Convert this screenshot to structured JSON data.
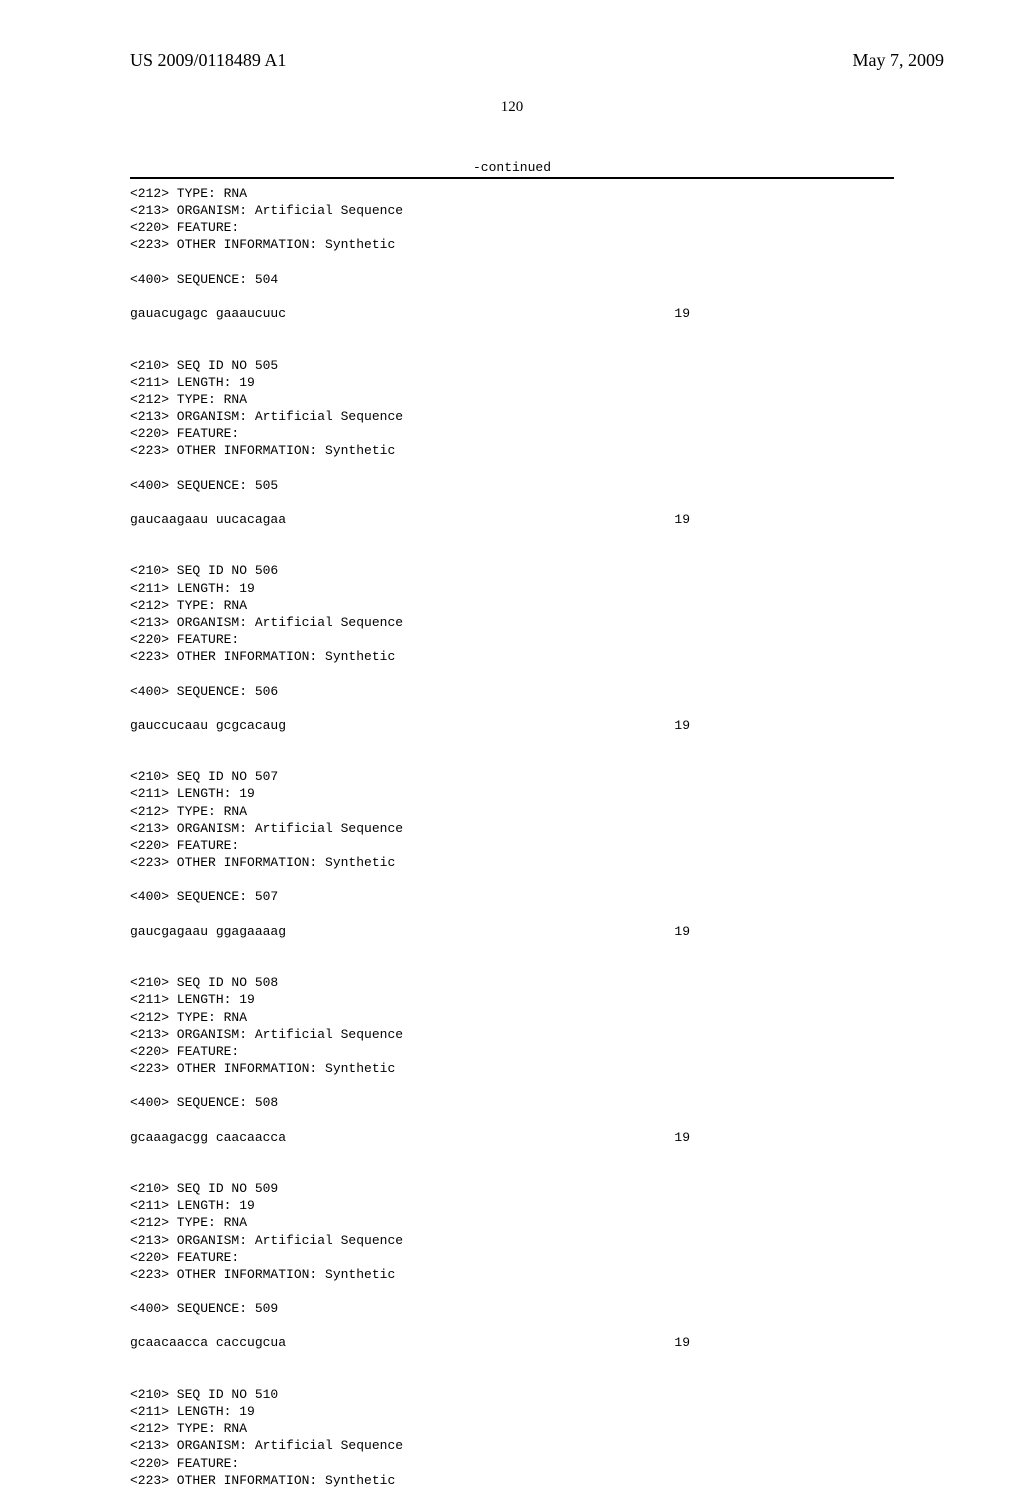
{
  "header": {
    "pub_number": "US 2009/0118489 A1",
    "pub_date": "May 7, 2009"
  },
  "page_number": "120",
  "continued": "-continued",
  "entries": [
    {
      "lines": [
        "<212> TYPE: RNA",
        "<213> ORGANISM: Artificial Sequence",
        "<220> FEATURE:",
        "<223> OTHER INFORMATION: Synthetic",
        "",
        "<400> SEQUENCE: 504"
      ],
      "sequence": "gauacugagc gaaaucuuc",
      "length": "19"
    },
    {
      "lines": [
        "<210> SEQ ID NO 505",
        "<211> LENGTH: 19",
        "<212> TYPE: RNA",
        "<213> ORGANISM: Artificial Sequence",
        "<220> FEATURE:",
        "<223> OTHER INFORMATION: Synthetic",
        "",
        "<400> SEQUENCE: 505"
      ],
      "sequence": "gaucaagaau uucacagaa",
      "length": "19"
    },
    {
      "lines": [
        "<210> SEQ ID NO 506",
        "<211> LENGTH: 19",
        "<212> TYPE: RNA",
        "<213> ORGANISM: Artificial Sequence",
        "<220> FEATURE:",
        "<223> OTHER INFORMATION: Synthetic",
        "",
        "<400> SEQUENCE: 506"
      ],
      "sequence": "gauccucaau gcgcacaug",
      "length": "19"
    },
    {
      "lines": [
        "<210> SEQ ID NO 507",
        "<211> LENGTH: 19",
        "<212> TYPE: RNA",
        "<213> ORGANISM: Artificial Sequence",
        "<220> FEATURE:",
        "<223> OTHER INFORMATION: Synthetic",
        "",
        "<400> SEQUENCE: 507"
      ],
      "sequence": "gaucgagaau ggagaaaag",
      "length": "19"
    },
    {
      "lines": [
        "<210> SEQ ID NO 508",
        "<211> LENGTH: 19",
        "<212> TYPE: RNA",
        "<213> ORGANISM: Artificial Sequence",
        "<220> FEATURE:",
        "<223> OTHER INFORMATION: Synthetic",
        "",
        "<400> SEQUENCE: 508"
      ],
      "sequence": "gcaaagacgg caacaacca",
      "length": "19"
    },
    {
      "lines": [
        "<210> SEQ ID NO 509",
        "<211> LENGTH: 19",
        "<212> TYPE: RNA",
        "<213> ORGANISM: Artificial Sequence",
        "<220> FEATURE:",
        "<223> OTHER INFORMATION: Synthetic",
        "",
        "<400> SEQUENCE: 509"
      ],
      "sequence": "gcaacaacca caccugcua",
      "length": "19"
    },
    {
      "lines": [
        "<210> SEQ ID NO 510",
        "<211> LENGTH: 19",
        "<212> TYPE: RNA",
        "<213> ORGANISM: Artificial Sequence",
        "<220> FEATURE:",
        "<223> OTHER INFORMATION: Synthetic"
      ],
      "sequence": null,
      "length": null
    }
  ]
}
